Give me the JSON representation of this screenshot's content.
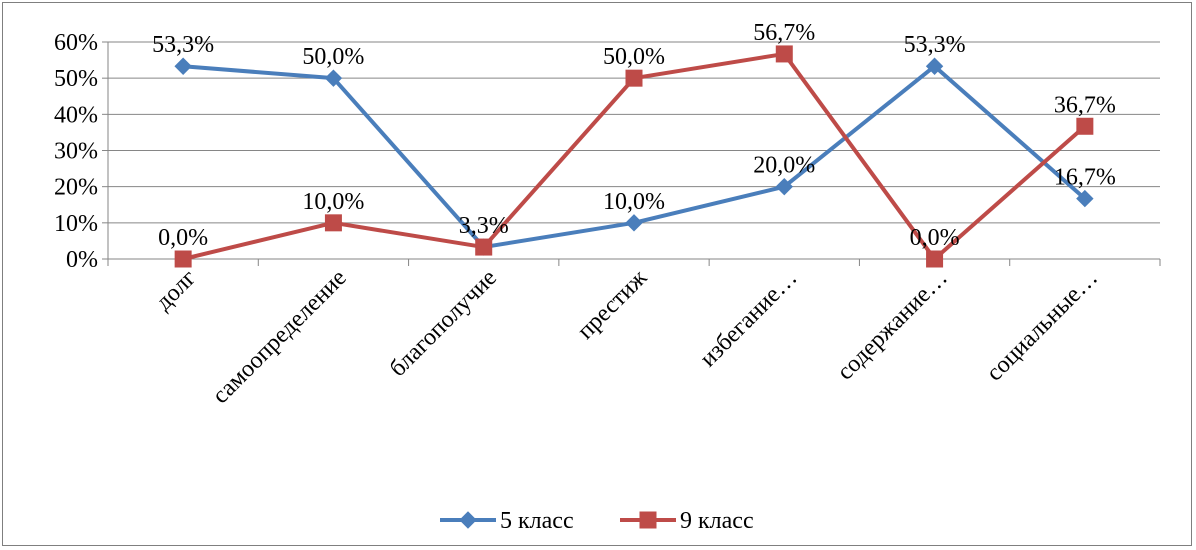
{
  "chart_data": {
    "type": "line",
    "categories": [
      "долг",
      "самоопределение",
      "благополучие",
      "престиж",
      "избегание…",
      "содержание…",
      "социальные…"
    ],
    "series": [
      {
        "name": "5 класс",
        "values": [
          53.3,
          50.0,
          3.3,
          10.0,
          20.0,
          53.3,
          16.7
        ],
        "labels": [
          "53,3%",
          "50,0%",
          "3,3%",
          "10,0%",
          "20,0%",
          "53,3%",
          "16,7%"
        ],
        "color": "#4a7ebb",
        "marker": "diamond"
      },
      {
        "name": "9 класс",
        "values": [
          0.0,
          10.0,
          3.3,
          50.0,
          56.7,
          0.0,
          36.7
        ],
        "labels": [
          "0,0%",
          "10,0%",
          "",
          "50,0%",
          "56,7%",
          "0,0%",
          "36,7%"
        ],
        "color": "#be4b48",
        "marker": "square"
      }
    ],
    "y_ticks": [
      "0%",
      "10%",
      "20%",
      "30%",
      "40%",
      "50%",
      "60%"
    ],
    "ylim": [
      0,
      60
    ],
    "grid": true,
    "legend_position": "bottom"
  }
}
